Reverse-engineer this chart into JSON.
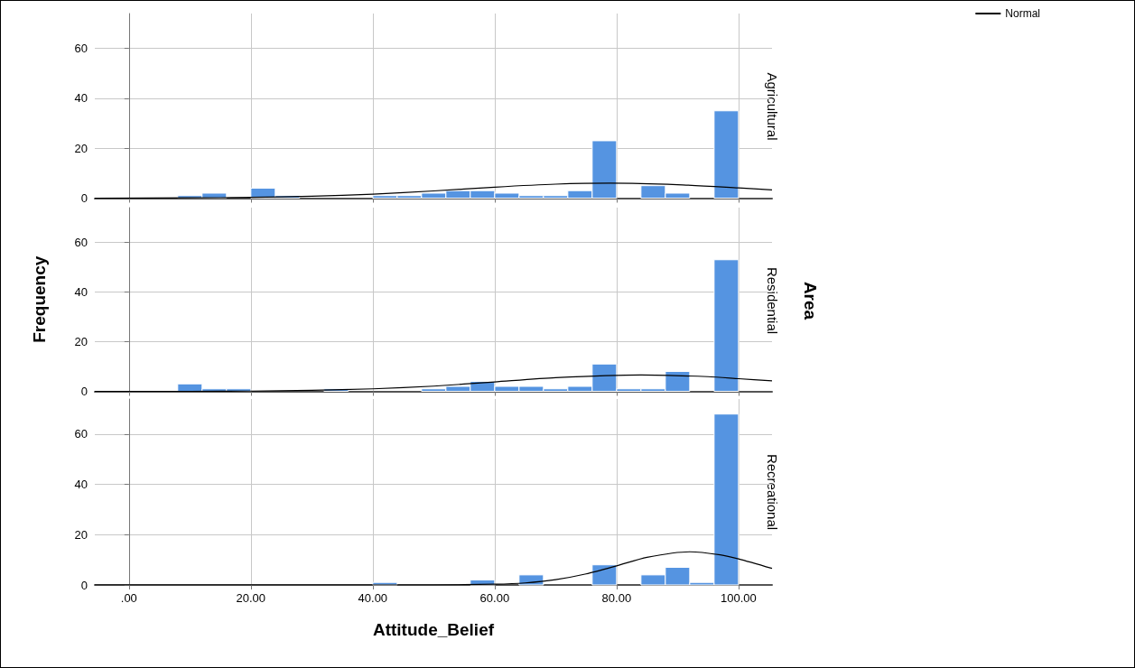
{
  "chart_data": [
    {
      "type": "histogram",
      "title": "Agricultural",
      "bins": [
        0,
        4,
        8,
        12,
        16,
        20,
        24,
        28,
        32,
        36,
        40,
        44,
        48,
        52,
        56,
        60,
        64,
        68,
        72,
        76,
        80,
        84,
        88,
        92,
        96,
        100
      ],
      "values": [
        0,
        0,
        1,
        2,
        0,
        4,
        1,
        0,
        0,
        0,
        1,
        1,
        2,
        3,
        3,
        2,
        1,
        1,
        3,
        23,
        0,
        5,
        2,
        0,
        35
      ],
      "color": "#5594e1",
      "series": [
        {
          "name": "Normal",
          "type": "line",
          "color": "#000000",
          "x": [
            -5.6,
            10,
            20,
            30,
            40,
            50,
            60,
            70,
            79,
            90,
            100,
            105.5
          ],
          "values": [
            0,
            0.1,
            0.3,
            0.8,
            1.6,
            2.9,
            4.4,
            5.6,
            6,
            5.4,
            4.1,
            3.3
          ]
        }
      ],
      "xlim": [
        -5.6,
        105.5
      ],
      "xticks": [
        0,
        20,
        40,
        60,
        80,
        100
      ],
      "ylim": [
        0,
        74
      ],
      "yticks": [
        0,
        20,
        40,
        60
      ],
      "grid": true,
      "legend": "top right",
      "tick_labels": "y"
    },
    {
      "type": "histogram",
      "title": "Residential",
      "ylabel": "Frequency",
      "y2label": "Area",
      "bins": [
        0,
        4,
        8,
        12,
        16,
        20,
        24,
        28,
        32,
        36,
        40,
        44,
        48,
        52,
        56,
        60,
        64,
        68,
        72,
        76,
        80,
        84,
        88,
        92,
        96,
        100
      ],
      "values": [
        0,
        0,
        3,
        1,
        1,
        0,
        0,
        0,
        1,
        0,
        0,
        0,
        1,
        2,
        4,
        2,
        2,
        1,
        2,
        11,
        1,
        1,
        8,
        0,
        53
      ],
      "color": "#5594e1",
      "series": [
        {
          "type": "line",
          "color": "#000000",
          "x": [
            -5.6,
            10,
            20,
            30,
            40,
            50,
            60,
            70,
            84,
            95,
            100,
            105.5
          ],
          "values": [
            0,
            0,
            0.1,
            0.4,
            1,
            2.1,
            3.8,
            5.5,
            6.6,
            5.9,
            5.1,
            4.2
          ]
        }
      ],
      "xlim": [
        -5.6,
        105.5
      ],
      "xticks": [
        0,
        20,
        40,
        60,
        80,
        100
      ],
      "ylim": [
        0,
        74
      ],
      "yticks": [
        0,
        20,
        40,
        60
      ],
      "grid": true,
      "tick_labels": "y"
    },
    {
      "type": "histogram",
      "title": "Recreational",
      "xlabel": "Attitude_Belief",
      "bins": [
        0,
        4,
        8,
        12,
        16,
        20,
        24,
        28,
        32,
        36,
        40,
        44,
        48,
        52,
        56,
        60,
        64,
        68,
        72,
        76,
        80,
        84,
        88,
        92,
        96,
        100
      ],
      "values": [
        0,
        0,
        0,
        0,
        0,
        0,
        0,
        0,
        0,
        0,
        1,
        0,
        0,
        0,
        2,
        0,
        4,
        0,
        0,
        8,
        0,
        4,
        7,
        1,
        68
      ],
      "color": "#5594e1",
      "series": [
        {
          "type": "line",
          "color": "#000000",
          "x": [
            -5.6,
            40,
            50,
            60,
            65,
            70,
            75,
            80,
            85,
            92,
            97,
            100,
            105.5
          ],
          "values": [
            0,
            0,
            0,
            0.3,
            0.8,
            2.1,
            4.4,
            7.6,
            11,
            13.2,
            12,
            10.4,
            6.6
          ]
        }
      ],
      "xlim": [
        -5.6,
        105.5
      ],
      "xticks": [
        {
          "value": 0,
          "label": ".00"
        },
        {
          "value": 20,
          "label": "20.00"
        },
        {
          "value": 40,
          "label": "40.00"
        },
        {
          "value": 60,
          "label": "60.00"
        },
        {
          "value": 80,
          "label": "80.00"
        },
        {
          "value": 100,
          "label": "100.00"
        }
      ],
      "ylim": [
        0,
        74
      ],
      "yticks": [
        0,
        20,
        40,
        60
      ],
      "grid": true
    }
  ]
}
